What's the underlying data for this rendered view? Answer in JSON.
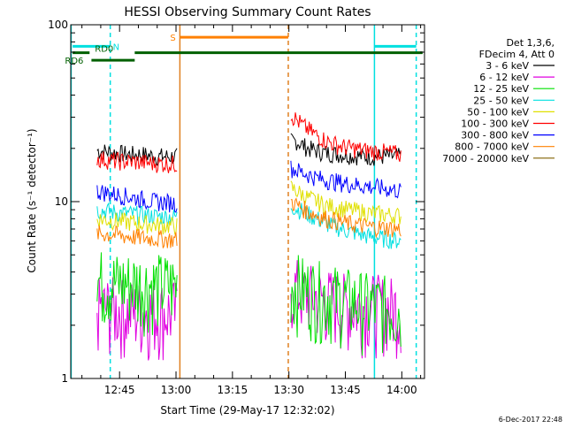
{
  "chart_data": {
    "type": "line",
    "title": "HESSI Observing Summary Count Rates",
    "xlabel": "Start Time (29-May-17 12:32:02)",
    "ylabel": "Count Rate (s⁻¹ detector⁻¹)",
    "x_unit": "minutes after 12:32:02",
    "xlim": [
      0,
      94
    ],
    "ylim": [
      1,
      100
    ],
    "yscale": "log",
    "x_ticks": [
      {
        "value": 12.97,
        "label": "12:45"
      },
      {
        "value": 27.97,
        "label": "13:00"
      },
      {
        "value": 42.97,
        "label": "13:15"
      },
      {
        "value": 57.97,
        "label": "13:30"
      },
      {
        "value": 72.97,
        "label": "13:45"
      },
      {
        "value": 87.97,
        "label": "14:00"
      }
    ],
    "y_ticks": [
      {
        "value": 1,
        "label": "1"
      },
      {
        "value": 10,
        "label": "10"
      },
      {
        "value": 100,
        "label": "100"
      }
    ],
    "legend_header": [
      "Det 1,3,6,",
      "FDecim 4, Att 0"
    ],
    "legend_position": "right",
    "series": [
      {
        "name": "3 - 6 keV",
        "color": "#000000",
        "segments": [
          {
            "x": [
              7.0,
              11.0,
              15.0,
              19.0,
              23.0,
              28.5
            ],
            "y": [
              19.5,
              19.0,
              18.5,
              18.5,
              18.0,
              18.0
            ]
          },
          {
            "x": [
              58.5,
              60.0,
              63.0,
              67.0,
              72.0,
              78.0,
              84.0,
              88.0
            ],
            "y": [
              22,
              22,
              20,
              19,
              18.5,
              18,
              18,
              18
            ]
          }
        ]
      },
      {
        "name": "6 - 12 keV",
        "color": "#e000e0",
        "segments": [
          {
            "x": [
              7.0,
              12.0,
              17.0,
              22.0,
              28.5
            ],
            "y": [
              2.5,
              2.5,
              2.4,
              2.4,
              2.4
            ]
          },
          {
            "x": [
              58.5,
              63.0,
              68.0,
              74.0,
              80.0,
              88.0
            ],
            "y": [
              3.3,
              3.0,
              2.8,
              2.6,
              2.6,
              2.5
            ]
          }
        ]
      },
      {
        "name": "12 - 25 keV",
        "color": "#00e000",
        "segments": [
          {
            "x": [
              7.0,
              12.0,
              17.0,
              22.0,
              28.5
            ],
            "y": [
              3.6,
              3.5,
              3.5,
              3.4,
              3.4
            ]
          },
          {
            "x": [
              58.5,
              63.0,
              68.0,
              74.0,
              80.0,
              88.0
            ],
            "y": [
              3.5,
              3.2,
              3.0,
              2.8,
              2.6,
              2.5
            ]
          }
        ]
      },
      {
        "name": "25 - 50 keV",
        "color": "#00e0e0",
        "segments": [
          {
            "x": [
              7.0,
              12.0,
              17.0,
              22.0,
              28.5
            ],
            "y": [
              9.0,
              8.7,
              8.5,
              8.3,
              8.2
            ]
          },
          {
            "x": [
              58.5,
              63.0,
              68.0,
              74.0,
              80.0,
              88.0
            ],
            "y": [
              9.5,
              8.5,
              7.5,
              6.8,
              6.3,
              6.0
            ]
          }
        ]
      },
      {
        "name": "50 - 100 keV",
        "color": "#e0e000",
        "segments": [
          {
            "x": [
              7.0,
              12.0,
              17.0,
              22.0,
              28.5
            ],
            "y": [
              8.0,
              7.8,
              7.6,
              7.4,
              7.3
            ]
          },
          {
            "x": [
              58.5,
              63.0,
              68.0,
              74.0,
              80.0,
              88.0
            ],
            "y": [
              12,
              10.5,
              9.5,
              9.0,
              8.6,
              8.3
            ]
          }
        ]
      },
      {
        "name": "100 - 300 keV",
        "color": "#ff0000",
        "segments": [
          {
            "x": [
              7.0,
              12.0,
              17.0,
              22.0,
              28.5
            ],
            "y": [
              17.5,
              17.0,
              16.8,
              16.5,
              16.3
            ]
          },
          {
            "x": [
              58.5,
              60.0,
              62.0,
              65.0,
              68.0,
              72.0,
              78.0,
              84.0,
              88.0
            ],
            "y": [
              31,
              29,
              26.5,
              24,
              22,
              20.5,
              19.5,
              19,
              18.5
            ]
          }
        ]
      },
      {
        "name": "300 - 800 keV",
        "color": "#0000ff",
        "segments": [
          {
            "x": [
              7.0,
              12.0,
              17.0,
              22.0,
              28.5
            ],
            "y": [
              11.5,
              11.0,
              10.5,
              10.0,
              9.8
            ]
          },
          {
            "x": [
              58.5,
              62.0,
              66.0,
              70.0,
              75.0,
              82.0,
              88.0
            ],
            "y": [
              15.5,
              14.5,
              13.5,
              13.0,
              12.5,
              12.0,
              11.5
            ]
          }
        ]
      },
      {
        "name": "800 - 7000 keV",
        "color": "#ff8000",
        "segments": [
          {
            "x": [
              7.0,
              12.0,
              17.0,
              22.0,
              28.5
            ],
            "y": [
              6.6,
              6.5,
              6.3,
              6.2,
              6.1
            ]
          },
          {
            "x": [
              58.5,
              63.0,
              68.0,
              74.0,
              80.0,
              88.0
            ],
            "y": [
              10,
              8.8,
              8.0,
              7.5,
              7.2,
              7.0
            ]
          }
        ]
      },
      {
        "name": "7000 - 20000 keV",
        "color": "#806000",
        "segments": []
      }
    ],
    "vertical_markers": [
      {
        "x": 0.1,
        "color": "#00e0e0",
        "style": "solid"
      },
      {
        "x": 10.5,
        "color": "#00e0e0",
        "style": "dashed"
      },
      {
        "x": 29.0,
        "color": "#e08020",
        "style": "solid"
      },
      {
        "x": 57.8,
        "color": "#e08020",
        "style": "dashed"
      },
      {
        "x": 80.7,
        "color": "#00e0e0",
        "style": "solid"
      },
      {
        "x": 91.8,
        "color": "#00e0e0",
        "style": "dashed"
      }
    ],
    "flag_bars": [
      {
        "label": "N",
        "color": "#00e0e0",
        "y": 75.5,
        "segments": [
          [
            0.5,
            10.5
          ],
          [
            80.7,
            91.8
          ]
        ]
      },
      {
        "label": "S",
        "color": "#ff8000",
        "y": 85.0,
        "segments": [
          [
            29.0,
            57.8
          ]
        ]
      },
      {
        "label": "RD0",
        "color": "#006000",
        "y": 69.5,
        "segments": [
          [
            0.5,
            5.0
          ],
          [
            17.0,
            93.5
          ]
        ]
      },
      {
        "label": "RD6",
        "color": "#006000",
        "y": 63.0,
        "segments": [
          [
            5.5,
            17.0
          ]
        ]
      }
    ],
    "footer": "6-Dec-2017 22:48"
  }
}
